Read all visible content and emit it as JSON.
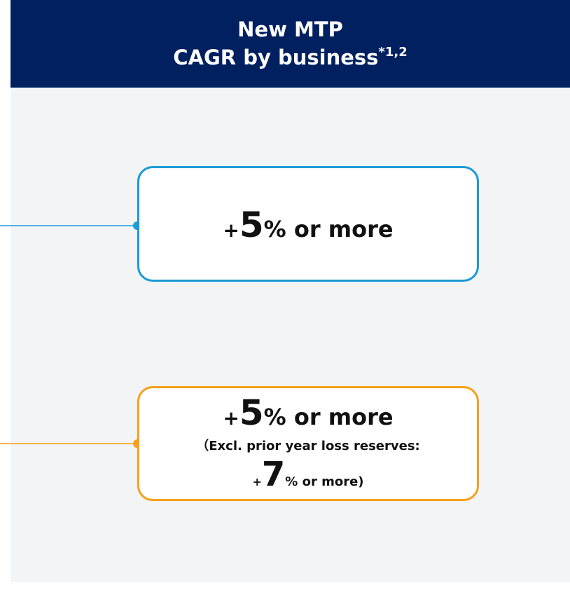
{
  "header": {
    "title_line1": "New MTP",
    "title_line2": "CAGR by business",
    "superscript": "*1,2"
  },
  "boxes": [
    {
      "prefix": "+",
      "value": 5,
      "suffix": "% or more"
    },
    {
      "prefix": "+",
      "value": 5,
      "suffix": "% or more",
      "note_line1": "（Excl. prior year loss reserves:",
      "note_prefix": "+",
      "note_value": 7,
      "note_suffix": "% or more)"
    }
  ]
}
